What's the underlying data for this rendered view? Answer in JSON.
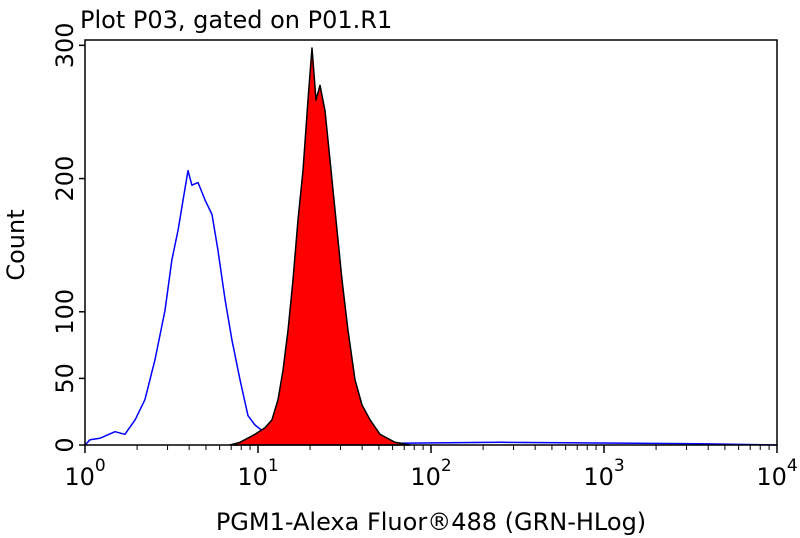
{
  "chart_data": {
    "type": "histogram-overlay",
    "title": "Plot P03, gated on P01.R1",
    "xlabel": "PGM1-Alexa Fluor®488 (GRN-HLog)",
    "ylabel": "Count",
    "xscale": "log",
    "xlim": [
      1,
      10000
    ],
    "ylim": [
      0,
      304
    ],
    "xticks": [
      {
        "value": 1,
        "label": "10",
        "exponent": "0"
      },
      {
        "value": 10,
        "label": "10",
        "exponent": "1"
      },
      {
        "value": 100,
        "label": "10",
        "exponent": "2"
      },
      {
        "value": 1000,
        "label": "10",
        "exponent": "3"
      },
      {
        "value": 10000,
        "label": "10",
        "exponent": "4"
      }
    ],
    "xminorticks": [
      2,
      3,
      4,
      5,
      6,
      7,
      8,
      9,
      20,
      30,
      40,
      50,
      60,
      70,
      80,
      90,
      200,
      300,
      400,
      500,
      600,
      700,
      800,
      900,
      2000,
      3000,
      4000,
      5000,
      6000,
      7000,
      8000,
      9000
    ],
    "yticks": [
      0,
      50,
      100,
      200,
      300
    ],
    "series": [
      {
        "color": "#0000ff",
        "filled": false,
        "x": [
          1,
          1.07,
          1.22,
          1.49,
          1.7,
          1.95,
          2.22,
          2.54,
          2.9,
          3.18,
          3.45,
          3.69,
          3.94,
          4.15,
          4.5,
          4.94,
          5.42,
          5.87,
          6.45,
          7.07,
          7.87,
          8.75,
          9.61,
          10.5,
          11.7,
          13.4,
          17.5,
          34,
          251,
          3588,
          10000
        ],
        "values": [
          0,
          4,
          5,
          10,
          8,
          19,
          34,
          64,
          101,
          139,
          161,
          184,
          206,
          195,
          197,
          184,
          173,
          146,
          109,
          79,
          49,
          22,
          15,
          11,
          8,
          4,
          2,
          1,
          2,
          1,
          0
        ]
      },
      {
        "color": "#ff0000",
        "edge_color": "#000000",
        "filled": true,
        "x": [
          6.89,
          7.87,
          9.61,
          10.98,
          12.05,
          13.05,
          13.95,
          14.91,
          15.94,
          17.03,
          18.2,
          19.45,
          20.52,
          21.64,
          22.83,
          24.4,
          26.08,
          28.24,
          30.59,
          33.13,
          36.37,
          39.93,
          44.4,
          50.7,
          61.9,
          75.6
        ],
        "values": [
          0,
          2,
          8,
          13,
          19,
          34,
          56,
          86,
          124,
          169,
          206,
          259,
          298,
          259,
          270,
          251,
          214,
          169,
          124,
          86,
          49,
          30,
          19,
          8,
          2,
          0
        ]
      }
    ]
  }
}
